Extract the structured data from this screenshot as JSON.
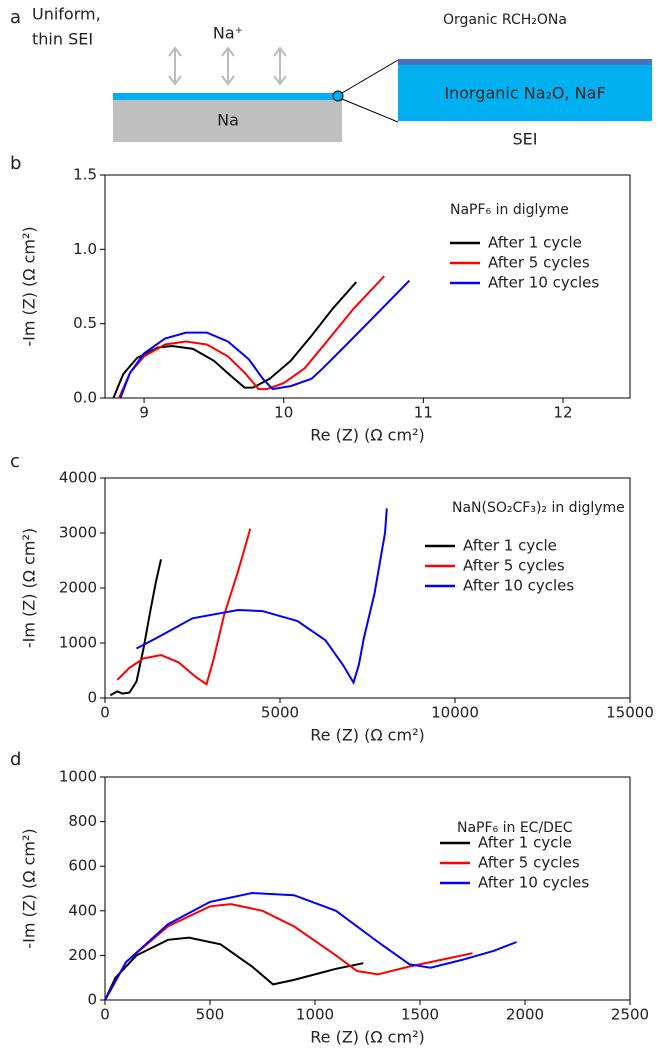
{
  "panel_a": {
    "label": "a",
    "left_label": [
      "Uniform,",
      "thin SEI"
    ],
    "ion": "Na⁺",
    "metal": "Na",
    "outer_layer": "Organic RCH₂ONa",
    "inner_layer": "Inorganic Na₂O, NaF",
    "caption": "SEI"
  },
  "chart_data": [
    {
      "type": "line",
      "panel_label": "b",
      "annotation": "NaPF₆ in diglyme",
      "x_label": "Re (Z) (Ω cm²)",
      "y_label": "-Im (Z) (Ω cm²)",
      "xlim": [
        8.72,
        12.48
      ],
      "xticks": [
        9,
        10,
        11,
        12
      ],
      "ylim": [
        0,
        1.5
      ],
      "yticks": [
        {
          "value": 0,
          "label": "0.0"
        },
        0.5,
        {
          "value": 1,
          "label": "1.0"
        },
        1.5
      ],
      "series": [
        {
          "name": "After 1 cycle",
          "color": "#000000",
          "x": [
            8.78,
            8.85,
            8.95,
            9.1,
            9.2,
            9.35,
            9.5,
            9.62,
            9.72,
            9.78,
            9.9,
            10.05,
            10.2,
            10.35,
            10.52
          ],
          "values": [
            0,
            0.16,
            0.27,
            0.34,
            0.35,
            0.33,
            0.25,
            0.15,
            0.07,
            0.07,
            0.13,
            0.25,
            0.42,
            0.6,
            0.78
          ]
        },
        {
          "name": "After 5 cycles",
          "color": "#ff0000",
          "x": [
            8.82,
            8.9,
            9.0,
            9.15,
            9.3,
            9.45,
            9.6,
            9.72,
            9.82,
            9.88,
            10.0,
            10.15,
            10.3,
            10.5,
            10.72
          ],
          "values": [
            0,
            0.17,
            0.28,
            0.36,
            0.38,
            0.36,
            0.28,
            0.17,
            0.06,
            0.06,
            0.1,
            0.2,
            0.37,
            0.6,
            0.82
          ]
        },
        {
          "name": "After 10 cycles",
          "color": "#0000ff",
          "x": [
            8.83,
            8.9,
            9.0,
            9.15,
            9.3,
            9.45,
            9.6,
            9.75,
            9.85,
            9.92,
            10.05,
            10.2,
            10.28,
            10.45,
            10.65,
            10.9
          ],
          "values": [
            0,
            0.17,
            0.3,
            0.4,
            0.44,
            0.44,
            0.38,
            0.26,
            0.13,
            0.06,
            0.08,
            0.13,
            0.2,
            0.36,
            0.55,
            0.79
          ]
        }
      ]
    },
    {
      "type": "line",
      "panel_label": "c",
      "annotation": "NaN(SO₂CF₃)₂ in diglyme",
      "x_label": "Re (Z) (Ω cm²)",
      "y_label": "-Im (Z) (Ω cm²)",
      "xlim": [
        0,
        15000
      ],
      "xticks": [
        0,
        5000,
        10000,
        15000
      ],
      "ylim": [
        0,
        4000
      ],
      "yticks": [
        0,
        1000,
        2000,
        3000,
        4000
      ],
      "series": [
        {
          "name": "After 1 cycle",
          "color": "#000000",
          "x": [
            150,
            350,
            500,
            700,
            900,
            1100,
            1300,
            1450,
            1600
          ],
          "values": [
            50,
            120,
            80,
            100,
            300,
            900,
            1600,
            2100,
            2520
          ]
        },
        {
          "name": "After 5 cycles",
          "color": "#ff0000",
          "x": [
            350,
            700,
            1100,
            1600,
            2100,
            2600,
            2900,
            3100,
            3400,
            3800,
            4150
          ],
          "values": [
            330,
            550,
            720,
            780,
            650,
            380,
            250,
            700,
            1500,
            2300,
            3080
          ]
        },
        {
          "name": "After 10 cycles",
          "color": "#0000ff",
          "x": [
            900,
            1500,
            2500,
            3800,
            4500,
            5500,
            6300,
            6800,
            7100,
            7250,
            7400,
            7700,
            8000,
            8050
          ],
          "values": [
            900,
            1100,
            1450,
            1600,
            1580,
            1400,
            1050,
            600,
            280,
            600,
            1100,
            1900,
            3000,
            3450
          ]
        }
      ]
    },
    {
      "type": "line",
      "panel_label": "d",
      "annotation": "NaPF₆ in EC/DEC",
      "x_label": "Re (Z) (Ω cm²)",
      "y_label": "-Im (Z) (Ω cm²)",
      "xlim": [
        0,
        2500
      ],
      "xticks": [
        0,
        500,
        1000,
        1500,
        2000,
        2500
      ],
      "ylim": [
        0,
        1000
      ],
      "yticks": [
        0,
        200,
        400,
        600,
        800,
        1000
      ],
      "series": [
        {
          "name": "After 1 cycle",
          "color": "#000000",
          "x": [
            0,
            50,
            150,
            300,
            400,
            550,
            700,
            800,
            900,
            1100,
            1230
          ],
          "values": [
            0,
            100,
            200,
            270,
            280,
            250,
            150,
            70,
            90,
            140,
            165
          ]
        },
        {
          "name": "After 5 cycles",
          "color": "#ff0000",
          "x": [
            0,
            100,
            300,
            500,
            600,
            750,
            900,
            1100,
            1200,
            1300,
            1450,
            1600,
            1750
          ],
          "values": [
            0,
            170,
            330,
            420,
            430,
            400,
            330,
            200,
            130,
            115,
            150,
            180,
            210
          ]
        },
        {
          "name": "After 10 cycles",
          "color": "#0000ff",
          "x": [
            0,
            100,
            300,
            500,
            700,
            900,
            1100,
            1300,
            1450,
            1550,
            1700,
            1850,
            1960
          ],
          "values": [
            0,
            170,
            340,
            440,
            480,
            470,
            400,
            260,
            160,
            145,
            180,
            220,
            260
          ]
        }
      ]
    }
  ]
}
